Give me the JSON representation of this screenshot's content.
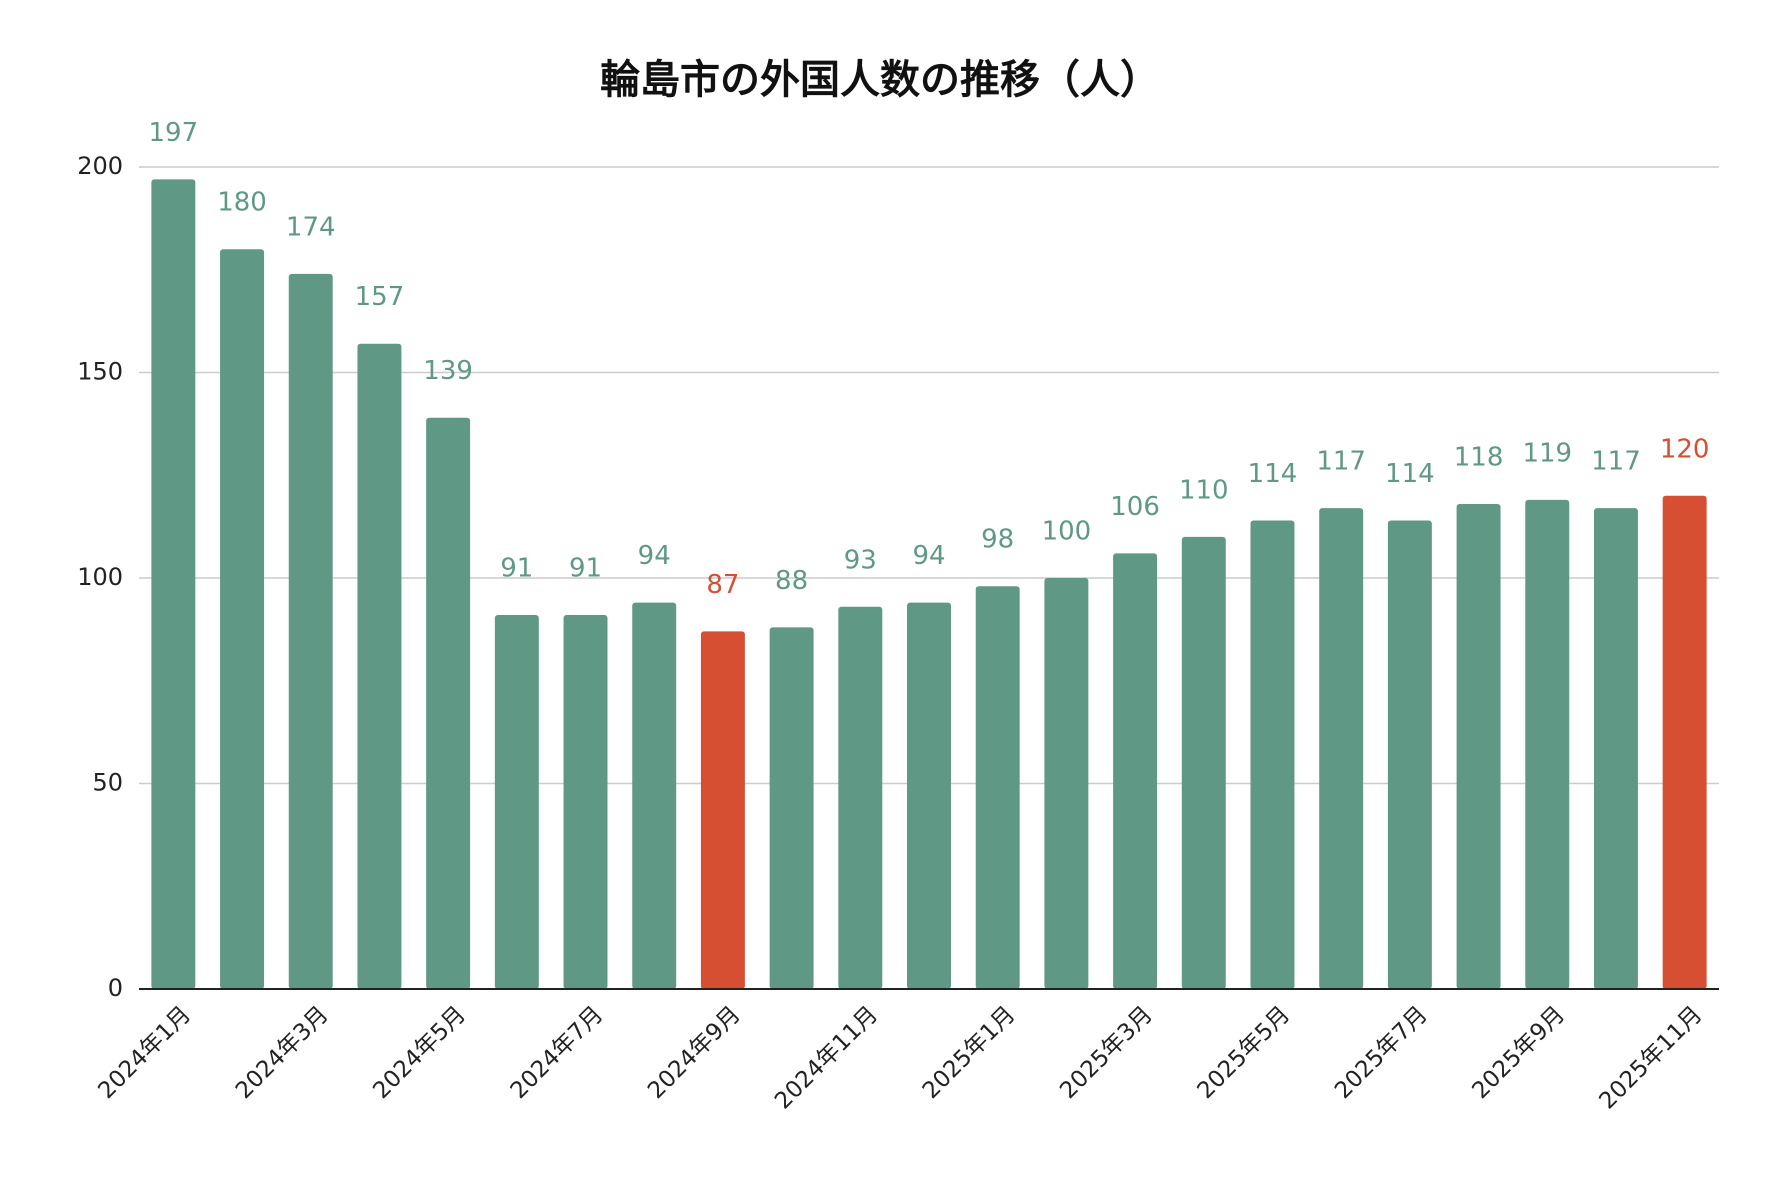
{
  "chart_data": {
    "type": "bar",
    "title": "輪島市の外国人数の推移（人）",
    "categories": [
      "2024年1月",
      null,
      "2024年3月",
      null,
      "2024年5月",
      null,
      "2024年7月",
      null,
      "2024年9月",
      null,
      "2024年11月",
      null,
      "2025年1月",
      null,
      "2025年3月",
      null,
      "2025年5月",
      null,
      "2025年7月",
      null,
      "2025年9月",
      null,
      "2025年11月"
    ],
    "values": [
      197,
      180,
      174,
      157,
      139,
      91,
      91,
      94,
      87,
      88,
      93,
      94,
      98,
      100,
      106,
      110,
      114,
      117,
      114,
      118,
      119,
      117,
      120
    ],
    "colors": [
      "#5f9986",
      "#5f9986",
      "#5f9986",
      "#5f9986",
      "#5f9986",
      "#5f9986",
      "#5f9986",
      "#5f9986",
      "#d64f33",
      "#5f9986",
      "#5f9986",
      "#5f9986",
      "#5f9986",
      "#5f9986",
      "#5f9986",
      "#5f9986",
      "#5f9986",
      "#5f9986",
      "#5f9986",
      "#5f9986",
      "#5f9986",
      "#5f9986",
      "#d64f33"
    ],
    "ylim": [
      0,
      200
    ],
    "yticks": [
      0,
      50,
      100,
      150,
      200
    ],
    "grid": true
  }
}
